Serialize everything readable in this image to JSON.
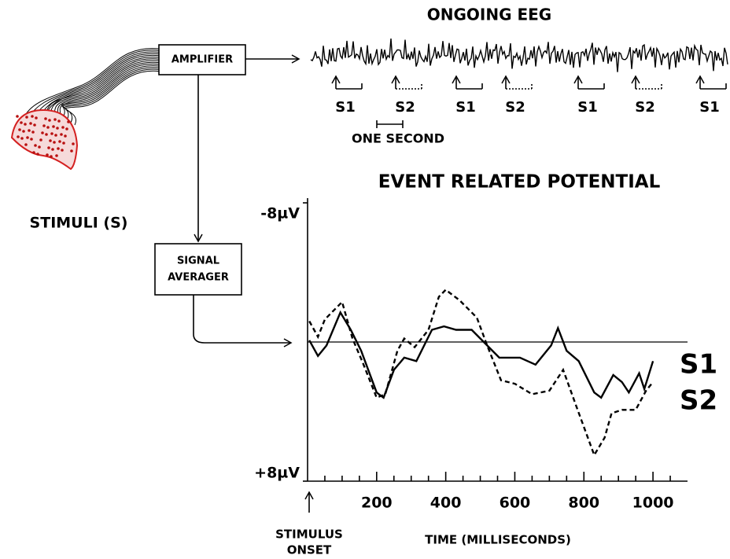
{
  "stimuli_label": "STIMULI (S)",
  "amplifier": "AMPLIFIER",
  "averager": [
    "SIGNAL",
    "AVERAGER"
  ],
  "eeg": {
    "title": "ONGOING EEG",
    "markers": [
      "S1",
      "S2",
      "S1",
      "S2",
      "S1",
      "S2",
      "S1"
    ],
    "scale_label": "ONE SECOND"
  },
  "chart_data": {
    "type": "line",
    "title": "EVENT RELATED POTENTIAL",
    "xlabel": "TIME (MILLISECONDS)",
    "x_annotation": [
      "STIMULUS",
      "ONSET"
    ],
    "xlim": [
      0,
      1100
    ],
    "xticks": [
      200,
      400,
      600,
      800,
      1000
    ],
    "xminor_ticks": [
      50,
      100,
      150,
      250,
      300,
      350,
      450,
      500,
      550,
      650,
      700,
      750,
      850,
      900,
      950,
      1050
    ],
    "ylim": [
      8,
      -8
    ],
    "yticks": [
      {
        "value": -8,
        "label": "-8µV"
      },
      {
        "value": 8,
        "label": "+8µV"
      }
    ],
    "hline": 0,
    "series": [
      {
        "name": "S1",
        "color": "#000000",
        "dashed": false,
        "x": [
          5,
          30,
          55,
          95,
          125,
          155,
          200,
          220,
          250,
          280,
          315,
          360,
          395,
          430,
          475,
          520,
          555,
          615,
          660,
          705,
          725,
          750,
          785,
          830,
          850,
          885,
          910,
          930,
          960,
          975,
          1000
        ],
        "values": [
          -0.1,
          0.8,
          0.2,
          -1.7,
          -0.7,
          0.5,
          2.9,
          3.2,
          1.6,
          0.9,
          1.1,
          -0.7,
          -0.9,
          -0.7,
          -0.7,
          0.2,
          0.9,
          0.9,
          1.3,
          0.2,
          -0.8,
          0.5,
          1.1,
          2.9,
          3.2,
          1.9,
          2.3,
          2.9,
          1.8,
          2.7,
          1.1
        ]
      },
      {
        "name": "S2",
        "color": "#000000",
        "dashed": true,
        "x": [
          5,
          30,
          50,
          100,
          130,
          160,
          200,
          225,
          260,
          280,
          310,
          350,
          380,
          400,
          440,
          490,
          520,
          560,
          600,
          650,
          700,
          740,
          780,
          830,
          860,
          880,
          910,
          950,
          980,
          1000
        ],
        "values": [
          -1.2,
          -0.3,
          -1.3,
          -2.3,
          -0.2,
          1.2,
          3.2,
          3.0,
          0.5,
          -0.2,
          0.3,
          -0.7,
          -2.6,
          -3.0,
          -2.4,
          -1.4,
          0.2,
          2.2,
          2.4,
          3.0,
          2.8,
          1.6,
          3.8,
          6.5,
          5.5,
          4.1,
          3.9,
          3.9,
          2.8,
          2.3
        ]
      }
    ]
  }
}
